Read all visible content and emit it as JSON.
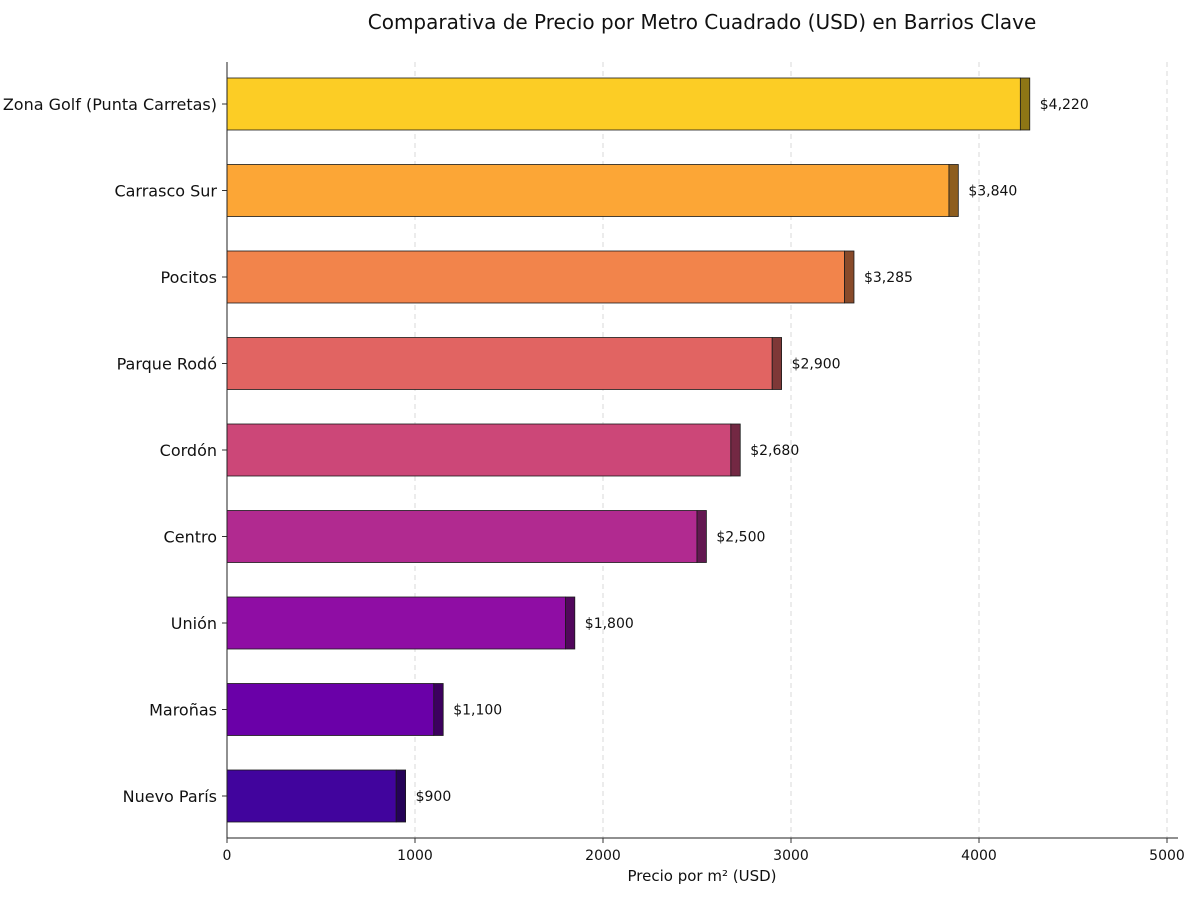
{
  "chart_data": {
    "type": "bar",
    "orientation": "horizontal",
    "title": "Comparativa de Precio por Metro Cuadrado (USD) en Barrios Clave",
    "xlabel": "Precio por m² (USD)",
    "ylabel": "",
    "xlim": [
      0,
      5000
    ],
    "xticks": [
      0,
      1000,
      2000,
      3000,
      4000,
      5000
    ],
    "grid": "vertical-dashed",
    "legend": "none",
    "categories": [
      "Zona Golf (Punta Carretas)",
      "Carrasco Sur",
      "Pocitos",
      "Parque Rodó",
      "Cordón",
      "Centro",
      "Unión",
      "Maroñas",
      "Nuevo París"
    ],
    "values": [
      4220,
      3840,
      3285,
      2900,
      2680,
      2500,
      1800,
      1100,
      900
    ],
    "value_labels": [
      "$4,220",
      "$3,840",
      "$3,285",
      "$2,900",
      "$2,680",
      "$2,500",
      "$1,800",
      "$1,100",
      "$900"
    ],
    "colors": [
      "#fccd25",
      "#fca636",
      "#f2844b",
      "#e16462",
      "#cc4778",
      "#b12a90",
      "#8f0da4",
      "#6a00a8",
      "#41049d"
    ],
    "edge_colors": [
      "#8e7615",
      "#8e5e1f",
      "#884a2a",
      "#7e3837",
      "#732843",
      "#631851",
      "#51075c",
      "#3c005e",
      "#250258"
    ]
  }
}
